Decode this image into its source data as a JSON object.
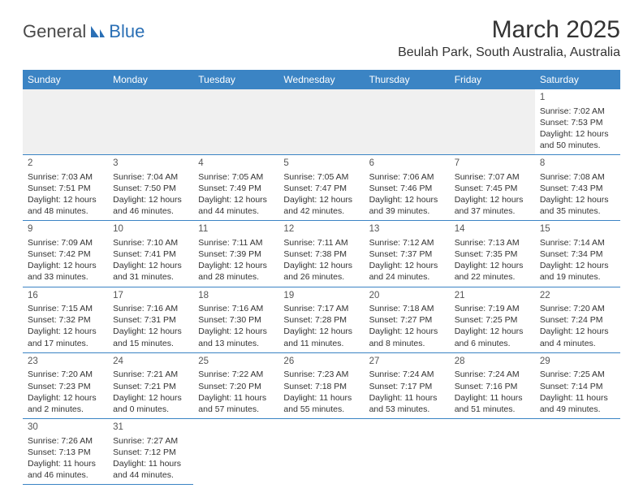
{
  "logo": {
    "part1": "General",
    "part2": "Blue"
  },
  "title": "March 2025",
  "location": "Beulah Park, South Australia, Australia",
  "dayNames": [
    "Sunday",
    "Monday",
    "Tuesday",
    "Wednesday",
    "Thursday",
    "Friday",
    "Saturday"
  ],
  "colors": {
    "headerBg": "#3b84c4",
    "headerText": "#ffffff",
    "ruleColor": "#3b84c4",
    "blankBg": "#f0f0f0",
    "textColor": "#333333",
    "logoBlue": "#2a6fb5"
  },
  "weeks": [
    [
      null,
      null,
      null,
      null,
      null,
      null,
      {
        "n": "1",
        "sr": "Sunrise: 7:02 AM",
        "ss": "Sunset: 7:53 PM",
        "d1": "Daylight: 12 hours",
        "d2": "and 50 minutes."
      }
    ],
    [
      {
        "n": "2",
        "sr": "Sunrise: 7:03 AM",
        "ss": "Sunset: 7:51 PM",
        "d1": "Daylight: 12 hours",
        "d2": "and 48 minutes."
      },
      {
        "n": "3",
        "sr": "Sunrise: 7:04 AM",
        "ss": "Sunset: 7:50 PM",
        "d1": "Daylight: 12 hours",
        "d2": "and 46 minutes."
      },
      {
        "n": "4",
        "sr": "Sunrise: 7:05 AM",
        "ss": "Sunset: 7:49 PM",
        "d1": "Daylight: 12 hours",
        "d2": "and 44 minutes."
      },
      {
        "n": "5",
        "sr": "Sunrise: 7:05 AM",
        "ss": "Sunset: 7:47 PM",
        "d1": "Daylight: 12 hours",
        "d2": "and 42 minutes."
      },
      {
        "n": "6",
        "sr": "Sunrise: 7:06 AM",
        "ss": "Sunset: 7:46 PM",
        "d1": "Daylight: 12 hours",
        "d2": "and 39 minutes."
      },
      {
        "n": "7",
        "sr": "Sunrise: 7:07 AM",
        "ss": "Sunset: 7:45 PM",
        "d1": "Daylight: 12 hours",
        "d2": "and 37 minutes."
      },
      {
        "n": "8",
        "sr": "Sunrise: 7:08 AM",
        "ss": "Sunset: 7:43 PM",
        "d1": "Daylight: 12 hours",
        "d2": "and 35 minutes."
      }
    ],
    [
      {
        "n": "9",
        "sr": "Sunrise: 7:09 AM",
        "ss": "Sunset: 7:42 PM",
        "d1": "Daylight: 12 hours",
        "d2": "and 33 minutes."
      },
      {
        "n": "10",
        "sr": "Sunrise: 7:10 AM",
        "ss": "Sunset: 7:41 PM",
        "d1": "Daylight: 12 hours",
        "d2": "and 31 minutes."
      },
      {
        "n": "11",
        "sr": "Sunrise: 7:11 AM",
        "ss": "Sunset: 7:39 PM",
        "d1": "Daylight: 12 hours",
        "d2": "and 28 minutes."
      },
      {
        "n": "12",
        "sr": "Sunrise: 7:11 AM",
        "ss": "Sunset: 7:38 PM",
        "d1": "Daylight: 12 hours",
        "d2": "and 26 minutes."
      },
      {
        "n": "13",
        "sr": "Sunrise: 7:12 AM",
        "ss": "Sunset: 7:37 PM",
        "d1": "Daylight: 12 hours",
        "d2": "and 24 minutes."
      },
      {
        "n": "14",
        "sr": "Sunrise: 7:13 AM",
        "ss": "Sunset: 7:35 PM",
        "d1": "Daylight: 12 hours",
        "d2": "and 22 minutes."
      },
      {
        "n": "15",
        "sr": "Sunrise: 7:14 AM",
        "ss": "Sunset: 7:34 PM",
        "d1": "Daylight: 12 hours",
        "d2": "and 19 minutes."
      }
    ],
    [
      {
        "n": "16",
        "sr": "Sunrise: 7:15 AM",
        "ss": "Sunset: 7:32 PM",
        "d1": "Daylight: 12 hours",
        "d2": "and 17 minutes."
      },
      {
        "n": "17",
        "sr": "Sunrise: 7:16 AM",
        "ss": "Sunset: 7:31 PM",
        "d1": "Daylight: 12 hours",
        "d2": "and 15 minutes."
      },
      {
        "n": "18",
        "sr": "Sunrise: 7:16 AM",
        "ss": "Sunset: 7:30 PM",
        "d1": "Daylight: 12 hours",
        "d2": "and 13 minutes."
      },
      {
        "n": "19",
        "sr": "Sunrise: 7:17 AM",
        "ss": "Sunset: 7:28 PM",
        "d1": "Daylight: 12 hours",
        "d2": "and 11 minutes."
      },
      {
        "n": "20",
        "sr": "Sunrise: 7:18 AM",
        "ss": "Sunset: 7:27 PM",
        "d1": "Daylight: 12 hours",
        "d2": "and 8 minutes."
      },
      {
        "n": "21",
        "sr": "Sunrise: 7:19 AM",
        "ss": "Sunset: 7:25 PM",
        "d1": "Daylight: 12 hours",
        "d2": "and 6 minutes."
      },
      {
        "n": "22",
        "sr": "Sunrise: 7:20 AM",
        "ss": "Sunset: 7:24 PM",
        "d1": "Daylight: 12 hours",
        "d2": "and 4 minutes."
      }
    ],
    [
      {
        "n": "23",
        "sr": "Sunrise: 7:20 AM",
        "ss": "Sunset: 7:23 PM",
        "d1": "Daylight: 12 hours",
        "d2": "and 2 minutes."
      },
      {
        "n": "24",
        "sr": "Sunrise: 7:21 AM",
        "ss": "Sunset: 7:21 PM",
        "d1": "Daylight: 12 hours",
        "d2": "and 0 minutes."
      },
      {
        "n": "25",
        "sr": "Sunrise: 7:22 AM",
        "ss": "Sunset: 7:20 PM",
        "d1": "Daylight: 11 hours",
        "d2": "and 57 minutes."
      },
      {
        "n": "26",
        "sr": "Sunrise: 7:23 AM",
        "ss": "Sunset: 7:18 PM",
        "d1": "Daylight: 11 hours",
        "d2": "and 55 minutes."
      },
      {
        "n": "27",
        "sr": "Sunrise: 7:24 AM",
        "ss": "Sunset: 7:17 PM",
        "d1": "Daylight: 11 hours",
        "d2": "and 53 minutes."
      },
      {
        "n": "28",
        "sr": "Sunrise: 7:24 AM",
        "ss": "Sunset: 7:16 PM",
        "d1": "Daylight: 11 hours",
        "d2": "and 51 minutes."
      },
      {
        "n": "29",
        "sr": "Sunrise: 7:25 AM",
        "ss": "Sunset: 7:14 PM",
        "d1": "Daylight: 11 hours",
        "d2": "and 49 minutes."
      }
    ],
    [
      {
        "n": "30",
        "sr": "Sunrise: 7:26 AM",
        "ss": "Sunset: 7:13 PM",
        "d1": "Daylight: 11 hours",
        "d2": "and 46 minutes."
      },
      {
        "n": "31",
        "sr": "Sunrise: 7:27 AM",
        "ss": "Sunset: 7:12 PM",
        "d1": "Daylight: 11 hours",
        "d2": "and 44 minutes."
      },
      null,
      null,
      null,
      null,
      null
    ]
  ]
}
